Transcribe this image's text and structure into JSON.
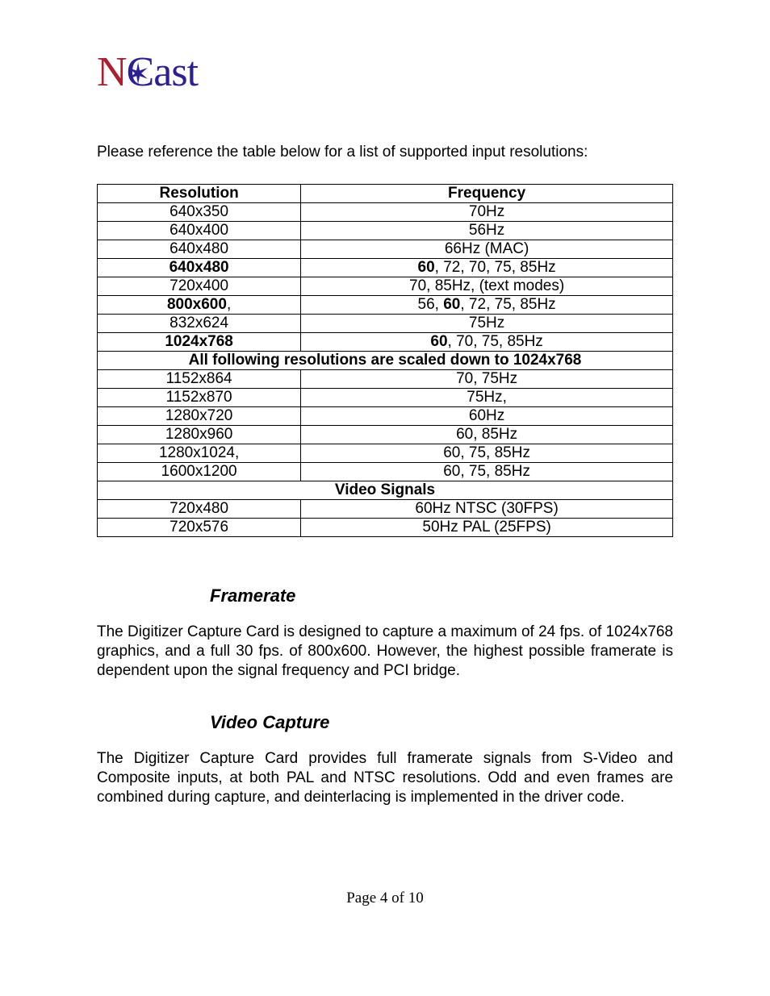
{
  "logo": {
    "n_text": "N",
    "cast_text": "Cast"
  },
  "intro": "Please reference the table below for a list of supported input resolutions:",
  "table": {
    "headers": [
      "Resolution",
      "Frequency"
    ],
    "rows": [
      {
        "type": "data",
        "resolution_html": "640x350",
        "frequency_html": "70Hz"
      },
      {
        "type": "data",
        "resolution_html": "640x400",
        "frequency_html": "56Hz"
      },
      {
        "type": "data",
        "resolution_html": "640x480",
        "frequency_html": "66Hz (MAC)"
      },
      {
        "type": "data",
        "resolution_html": "<span class=\"bold\">640x480</span>",
        "frequency_html": "<span class=\"bold\">60</span>, 72, 70, 75, 85Hz"
      },
      {
        "type": "data",
        "resolution_html": "720x400",
        "frequency_html": "70, 85Hz, (text modes)"
      },
      {
        "type": "data",
        "resolution_html": "<span class=\"bold\">800x600</span>,",
        "frequency_html": "56, <span class=\"bold\">60</span>, 72, 75, 85Hz"
      },
      {
        "type": "data",
        "resolution_html": "832x624",
        "frequency_html": "75Hz"
      },
      {
        "type": "data",
        "resolution_html": "<span class=\"bold\">1024x768</span>",
        "frequency_html": "<span class=\"bold\">60</span>, 70, 75, 85Hz"
      },
      {
        "type": "span",
        "text_html": "<span class=\"bold\">All following resolutions are scaled down to 1024x768</span>"
      },
      {
        "type": "data",
        "resolution_html": "1152x864",
        "frequency_html": "70, 75Hz"
      },
      {
        "type": "data",
        "resolution_html": "1152x870",
        "frequency_html": "75Hz,"
      },
      {
        "type": "data",
        "resolution_html": "1280x720",
        "frequency_html": "60Hz"
      },
      {
        "type": "data",
        "resolution_html": "1280x960",
        "frequency_html": "60, 85Hz"
      },
      {
        "type": "data",
        "resolution_html": "1280x1024,",
        "frequency_html": "60, 75, 85Hz"
      },
      {
        "type": "data",
        "resolution_html": "1600x1200",
        "frequency_html": "60, 75, 85Hz"
      },
      {
        "type": "span",
        "text_html": "<span class=\"bold\">Video Signals</span>"
      },
      {
        "type": "data",
        "resolution_html": "720x480",
        "frequency_html": "60Hz NTSC (30FPS)"
      },
      {
        "type": "data",
        "resolution_html": "720x576",
        "frequency_html": "50Hz PAL (25FPS)"
      }
    ]
  },
  "section1": {
    "title": "Framerate",
    "body": "The Digitizer Capture Card is designed to capture a maximum of 24 fps. of 1024x768 graphics, and a full 30 fps. of 800x600.  However, the highest possible framerate is dependent upon the signal frequency and PCI bridge."
  },
  "section2": {
    "title": "Video Capture",
    "body": "The Digitizer Capture Card provides full framerate signals from S-Video and Composite inputs, at both PAL and NTSC resolutions.  Odd and even frames are combined during capture, and deinterlacing is implemented in the driver code."
  },
  "footer": "Page 4 of 10"
}
